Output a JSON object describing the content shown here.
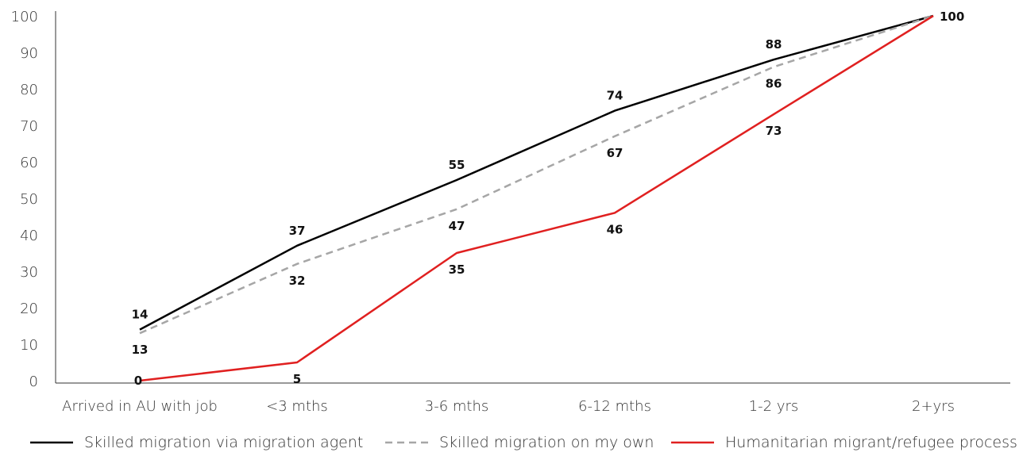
{
  "chart_data": {
    "type": "line",
    "categories": [
      "Arrived in AU with job",
      "<3 mths",
      "3-6 mths",
      "6-12 mths",
      "1-2 yrs",
      "2+yrs"
    ],
    "ylim": [
      0,
      100
    ],
    "yticks": [
      0,
      10,
      20,
      30,
      40,
      50,
      60,
      70,
      80,
      90,
      100
    ],
    "grid": false,
    "legend_position": "bottom",
    "series": [
      {
        "name": "Skilled migration via migration agent",
        "values": [
          14,
          37,
          55,
          74,
          88,
          100
        ],
        "color": "#000000",
        "style": "solid",
        "label_position": "above"
      },
      {
        "name": "Skilled migration on my own",
        "values": [
          13,
          32,
          47,
          67,
          86,
          100
        ],
        "color": "#a6a6a6",
        "style": "dashed",
        "label_position": "below"
      },
      {
        "name": "Humanitarian migrant/refugee process",
        "values": [
          0,
          5,
          35,
          46,
          73,
          100
        ],
        "color": "#e02020",
        "style": "solid",
        "label_position": "below"
      }
    ]
  }
}
